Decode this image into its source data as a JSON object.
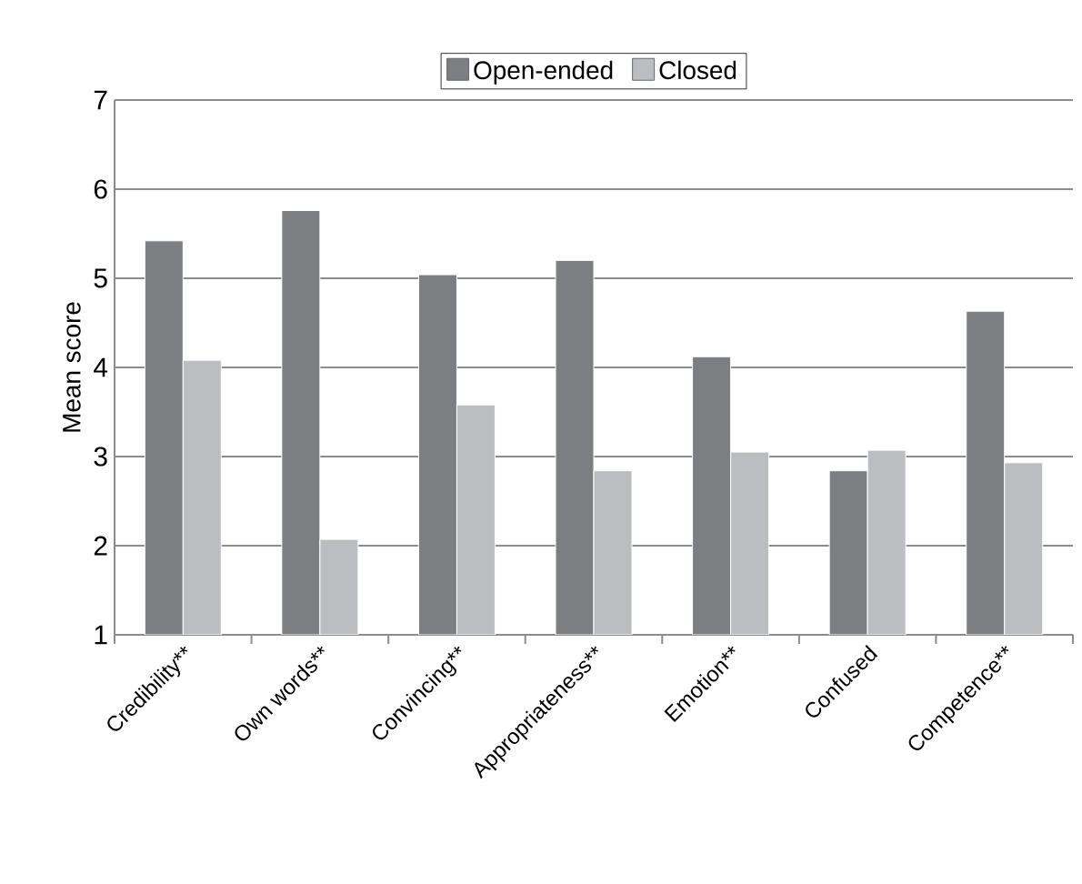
{
  "chart_data": {
    "type": "bar",
    "ylabel": "Mean score",
    "categories": [
      "Credibility**",
      "Own words**",
      "Convincing**",
      "Appropriateness**",
      "Emotion**",
      "Confused",
      "Competence**"
    ],
    "series": [
      {
        "name": "Open-ended",
        "color": "#7d7e82",
        "values": [
          5.42,
          5.76,
          5.04,
          5.2,
          4.12,
          2.84,
          4.63
        ]
      },
      {
        "name": "Closed",
        "color": "#bcbdc1",
        "values": [
          4.08,
          2.07,
          3.58,
          2.84,
          3.05,
          3.07,
          2.93
        ]
      }
    ],
    "ylim": [
      1,
      7
    ],
    "yticks": [
      1,
      2,
      3,
      4,
      5,
      6,
      7
    ],
    "grid": "y",
    "legend": "top"
  }
}
